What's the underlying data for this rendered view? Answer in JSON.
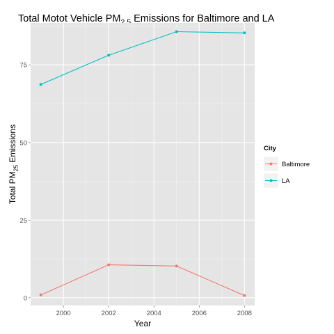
{
  "chart_data": {
    "type": "line",
    "title": "Total Motot Vehicle PM",
    "title_subscript": "2.5",
    "title_suffix": " Emissions for Baltimore and LA",
    "xlabel": "Year",
    "ylabel": "Total PM",
    "ylabel_subscript": "25",
    "ylabel_suffix": " Emissions",
    "xlim": [
      1998.55,
      2008.45
    ],
    "ylim": [
      -2.5,
      88.5
    ],
    "x_ticks": [
      2000,
      2002,
      2004,
      2006,
      2008
    ],
    "y_ticks": [
      0,
      25,
      50,
      75
    ],
    "grid": true,
    "legend": {
      "title": "City",
      "position": "right"
    },
    "series": [
      {
        "name": "Baltimore",
        "color": "#F8766D",
        "x": [
          1999,
          2002,
          2005,
          2008
        ],
        "y": [
          0.9,
          10.6,
          10.2,
          0.7
        ]
      },
      {
        "name": "LA",
        "color": "#00BFC4",
        "x": [
          1999,
          2002,
          2005,
          2008
        ],
        "y": [
          68.7,
          78.1,
          85.7,
          85.3
        ]
      }
    ]
  }
}
